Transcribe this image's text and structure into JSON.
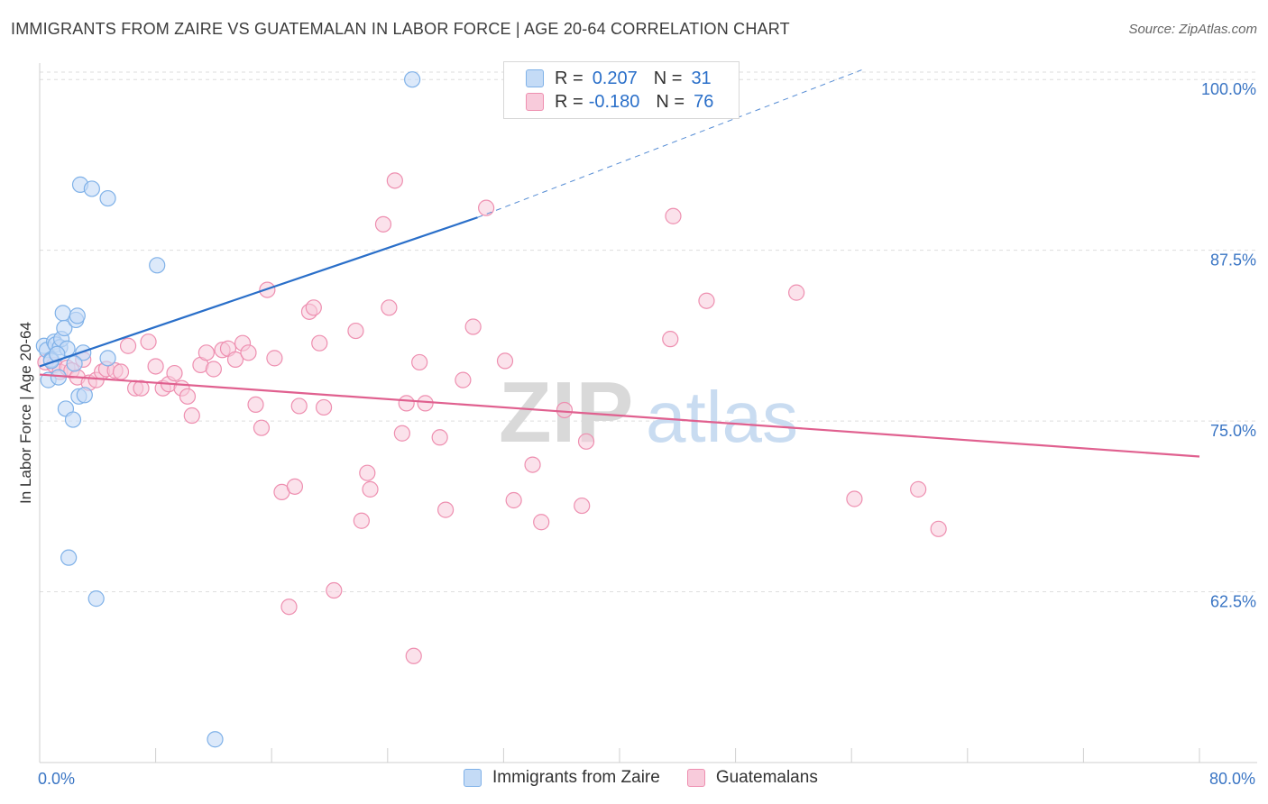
{
  "title": "IMMIGRANTS FROM ZAIRE VS GUATEMALAN IN LABOR FORCE | AGE 20-64 CORRELATION CHART",
  "source": "Source: ZipAtlas.com",
  "watermark": {
    "zip": "ZIP",
    "atlas": "atlas"
  },
  "colors": {
    "blue": "#7fb1e8",
    "blue_fill": "#c4dbf6",
    "blue_line": "#2a6fc9",
    "pink": "#ee8fb0",
    "pink_fill": "#f8cbdb",
    "pink_line": "#e0608f",
    "tick_label": "#3a75c4",
    "grid": "#dedede"
  },
  "legend": {
    "rows": [
      {
        "r_label": "R =",
        "r_value": "0.207",
        "n_label": "N =",
        "n_value": "31"
      },
      {
        "r_label": "R =",
        "r_value": "-0.180",
        "n_label": "N =",
        "n_value": "76"
      }
    ]
  },
  "bottom_legend": [
    {
      "label": "Immigrants from Zaire"
    },
    {
      "label": "Guatemalans"
    }
  ],
  "chart_data": {
    "type": "scatter",
    "title": "IMMIGRANTS FROM ZAIRE VS GUATEMALAN IN LABOR FORCE | AGE 20-64 CORRELATION CHART",
    "xlabel": "",
    "ylabel": "In Labor Force | Age 20-64",
    "xlim": [
      0,
      80
    ],
    "ylim": [
      50,
      101.2
    ],
    "x_tick_labels": [
      {
        "value": 0,
        "label": "0.0%"
      },
      {
        "value": 80,
        "label": "80.0%"
      }
    ],
    "y_tick_labels": [
      {
        "value": 100,
        "label": "100.0%"
      },
      {
        "value": 87.5,
        "label": "87.5%"
      },
      {
        "value": 75,
        "label": "75.0%"
      },
      {
        "value": 62.5,
        "label": "62.5%"
      }
    ],
    "series": [
      {
        "name": "Immigrants from Zaire",
        "R": 0.207,
        "N": 31,
        "trend": {
          "x0": 0,
          "y0": 79.0,
          "x1": 30.2,
          "y1": 89.9,
          "dashed_to_x": 56.7,
          "dashed_to_y": 100.7
        },
        "points": [
          [
            0.3,
            80.5
          ],
          [
            0.5,
            80.2
          ],
          [
            0.6,
            78.0
          ],
          [
            0.8,
            79.5
          ],
          [
            1.0,
            80.8
          ],
          [
            1.1,
            80.6
          ],
          [
            1.3,
            78.2
          ],
          [
            1.4,
            80.4
          ],
          [
            1.5,
            81.0
          ],
          [
            1.6,
            82.9
          ],
          [
            1.7,
            81.8
          ],
          [
            1.8,
            75.9
          ],
          [
            1.9,
            80.3
          ],
          [
            2.0,
            65.0
          ],
          [
            2.3,
            75.1
          ],
          [
            2.5,
            82.4
          ],
          [
            2.6,
            82.7
          ],
          [
            2.7,
            76.8
          ],
          [
            2.8,
            92.3
          ],
          [
            3.0,
            80.0
          ],
          [
            3.1,
            76.9
          ],
          [
            3.6,
            92.0
          ],
          [
            3.9,
            62.0
          ],
          [
            4.7,
            91.3
          ],
          [
            4.7,
            79.6
          ],
          [
            8.1,
            86.4
          ],
          [
            0.8,
            79.4
          ],
          [
            1.2,
            79.9
          ],
          [
            2.4,
            79.2
          ],
          [
            25.7,
            100.0
          ],
          [
            12.1,
            51.7
          ]
        ]
      },
      {
        "name": "Guatemalans",
        "R": -0.18,
        "N": 76,
        "trend": {
          "x0": 0,
          "y0": 78.4,
          "x1": 80,
          "y1": 72.4
        },
        "points": [
          [
            0.4,
            79.3
          ],
          [
            1.0,
            79.1
          ],
          [
            1.4,
            78.6
          ],
          [
            1.9,
            78.9
          ],
          [
            2.2,
            78.7
          ],
          [
            2.6,
            78.2
          ],
          [
            3.0,
            79.5
          ],
          [
            3.4,
            77.8
          ],
          [
            3.9,
            78.0
          ],
          [
            4.3,
            78.6
          ],
          [
            4.6,
            78.8
          ],
          [
            5.2,
            78.7
          ],
          [
            5.6,
            78.6
          ],
          [
            6.1,
            80.5
          ],
          [
            6.6,
            77.4
          ],
          [
            7.0,
            77.4
          ],
          [
            7.5,
            80.8
          ],
          [
            8.0,
            79.0
          ],
          [
            8.5,
            77.4
          ],
          [
            8.9,
            77.7
          ],
          [
            9.3,
            78.5
          ],
          [
            9.8,
            77.4
          ],
          [
            10.2,
            76.8
          ],
          [
            10.5,
            75.4
          ],
          [
            11.1,
            79.1
          ],
          [
            11.5,
            80.0
          ],
          [
            12.0,
            78.8
          ],
          [
            12.6,
            80.2
          ],
          [
            13.0,
            80.3
          ],
          [
            13.5,
            79.5
          ],
          [
            14.0,
            80.7
          ],
          [
            14.4,
            80.0
          ],
          [
            14.9,
            76.2
          ],
          [
            15.3,
            74.5
          ],
          [
            15.7,
            84.6
          ],
          [
            16.2,
            79.6
          ],
          [
            16.7,
            69.8
          ],
          [
            17.2,
            61.4
          ],
          [
            17.6,
            70.2
          ],
          [
            17.9,
            76.1
          ],
          [
            18.6,
            83.0
          ],
          [
            18.9,
            83.3
          ],
          [
            19.3,
            80.7
          ],
          [
            19.6,
            76.0
          ],
          [
            20.3,
            62.6
          ],
          [
            21.8,
            81.6
          ],
          [
            22.2,
            67.7
          ],
          [
            22.6,
            71.2
          ],
          [
            22.8,
            70.0
          ],
          [
            23.7,
            89.4
          ],
          [
            24.1,
            83.3
          ],
          [
            24.5,
            92.6
          ],
          [
            25.0,
            74.1
          ],
          [
            25.3,
            76.3
          ],
          [
            25.8,
            57.8
          ],
          [
            26.2,
            79.3
          ],
          [
            26.6,
            76.3
          ],
          [
            27.6,
            73.8
          ],
          [
            28.0,
            68.5
          ],
          [
            29.2,
            78.0
          ],
          [
            29.9,
            81.9
          ],
          [
            30.8,
            90.6
          ],
          [
            32.1,
            79.4
          ],
          [
            32.7,
            69.2
          ],
          [
            34.0,
            71.8
          ],
          [
            34.6,
            67.6
          ],
          [
            36.2,
            75.8
          ],
          [
            37.4,
            68.8
          ],
          [
            37.7,
            73.5
          ],
          [
            43.5,
            81.0
          ],
          [
            43.7,
            90.0
          ],
          [
            46.0,
            83.8
          ],
          [
            52.2,
            84.4
          ],
          [
            56.2,
            69.3
          ],
          [
            60.6,
            70.0
          ],
          [
            62.0,
            67.1
          ]
        ]
      }
    ]
  }
}
